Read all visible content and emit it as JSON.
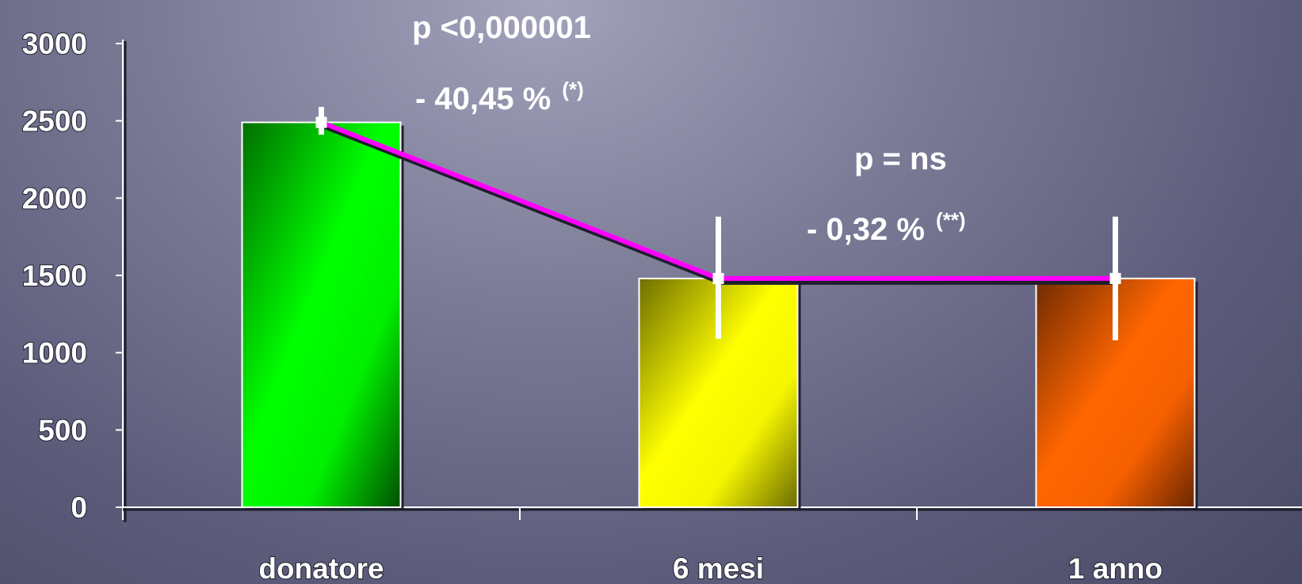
{
  "chart_data": {
    "type": "bar",
    "categories": [
      "donatore",
      "6 mesi",
      "1 anno"
    ],
    "values": [
      2490,
      1480,
      1480
    ],
    "error_bars": [
      {
        "low": 2410,
        "high": 2590
      },
      {
        "low": 1090,
        "high": 1880
      },
      {
        "low": 1080,
        "high": 1880
      }
    ],
    "bar_colors": [
      "#00ff00",
      "#ffff00",
      "#ff6600"
    ],
    "line_color": "#ff00ff",
    "ylim": [
      0,
      3000
    ],
    "yticks": [
      "0",
      "500",
      "1000",
      "1500",
      "2000",
      "2500",
      "3000"
    ],
    "ytick_values": [
      0,
      500,
      1000,
      1500,
      2000,
      2500,
      3000
    ],
    "xlabel": "",
    "ylabel": "",
    "title": "",
    "grid": false,
    "annotations": [
      {
        "text": "p <0,000001"
      },
      {
        "text": "- 40,45 %",
        "superscript": "(*)"
      },
      {
        "text": "p = ns"
      },
      {
        "text": "- 0,32 %",
        "superscript": "(**)"
      }
    ]
  }
}
